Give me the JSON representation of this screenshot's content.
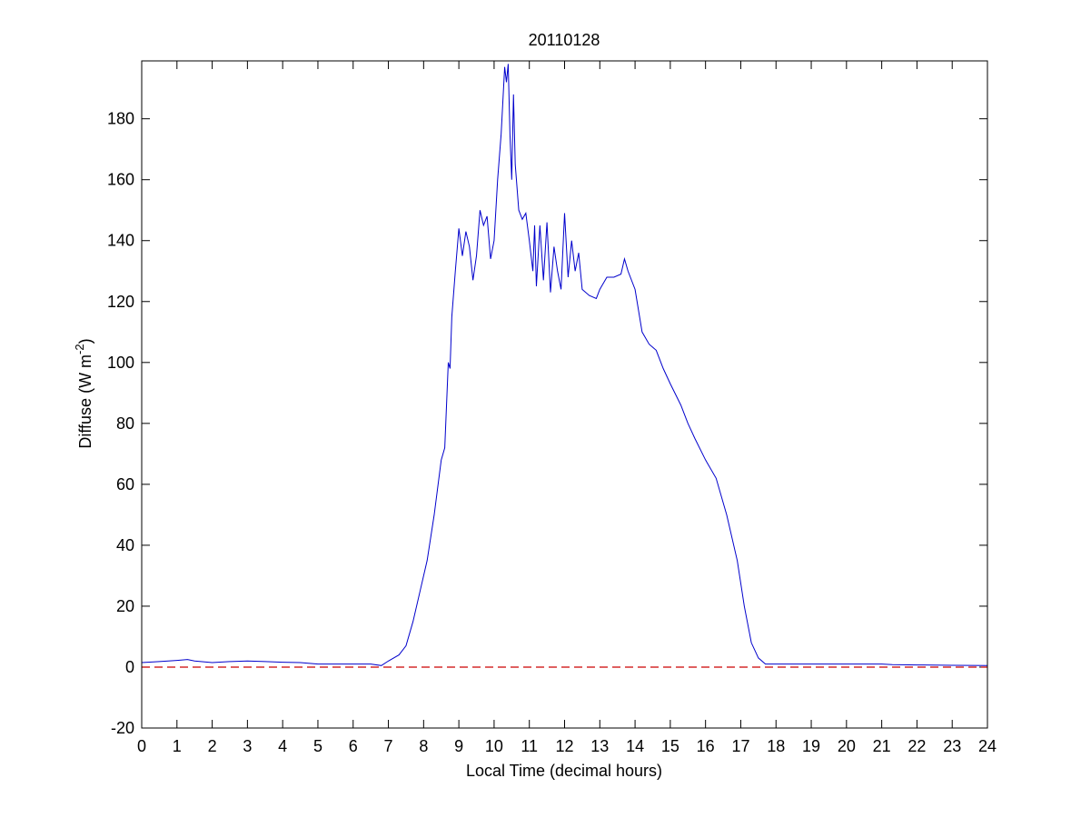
{
  "chart_data": {
    "type": "line",
    "title": "20110128",
    "xlabel": "Local Time (decimal hours)",
    "ylabel": {
      "text": "Diffuse (W m",
      "superscript": "-2",
      "suffix": ")"
    },
    "xlim": [
      0,
      24
    ],
    "ylim": [
      -20,
      199
    ],
    "xticks": [
      0,
      1,
      2,
      3,
      4,
      5,
      6,
      7,
      8,
      9,
      10,
      11,
      12,
      13,
      14,
      15,
      16,
      17,
      18,
      19,
      20,
      21,
      22,
      23,
      24
    ],
    "yticks": [
      -20,
      0,
      20,
      40,
      60,
      80,
      100,
      120,
      140,
      160,
      180
    ],
    "hlines": [
      {
        "value": 0,
        "color": "#cc0000",
        "style": "dashed"
      }
    ],
    "series": [
      {
        "color": "#0000cc",
        "x": [
          0,
          0.5,
          1,
          1.3,
          1.5,
          2,
          2.5,
          3,
          3.5,
          4,
          4.5,
          5,
          5.5,
          6,
          6.5,
          6.8,
          7,
          7.3,
          7.5,
          7.7,
          7.9,
          8.1,
          8.3,
          8.5,
          8.6,
          8.7,
          8.75,
          8.8,
          8.9,
          9,
          9.1,
          9.2,
          9.3,
          9.4,
          9.5,
          9.6,
          9.7,
          9.8,
          9.9,
          10,
          10.1,
          10.2,
          10.3,
          10.35,
          10.4,
          10.45,
          10.5,
          10.55,
          10.6,
          10.7,
          10.8,
          10.9,
          11,
          11.1,
          11.15,
          11.2,
          11.3,
          11.4,
          11.5,
          11.6,
          11.7,
          11.8,
          11.9,
          12,
          12.1,
          12.2,
          12.3,
          12.4,
          12.5,
          12.7,
          12.9,
          13,
          13.2,
          13.4,
          13.6,
          13.7,
          13.8,
          14,
          14.2,
          14.4,
          14.6,
          14.8,
          15,
          15.3,
          15.5,
          15.7,
          16,
          16.3,
          16.6,
          16.9,
          17.1,
          17.3,
          17.5,
          17.7,
          18,
          19,
          20,
          21,
          21.3,
          22,
          23,
          24
        ],
        "values": [
          1.5,
          1.8,
          2.2,
          2.5,
          2,
          1.5,
          1.8,
          2,
          1.8,
          1.6,
          1.5,
          1,
          1,
          1,
          1,
          0.5,
          2,
          4,
          7,
          15,
          25,
          35,
          50,
          68,
          72,
          100,
          98,
          115,
          130,
          144,
          135,
          143,
          138,
          127,
          135,
          150,
          145,
          148,
          134,
          140,
          160,
          175,
          197,
          192,
          198,
          175,
          160,
          188,
          165,
          150,
          147,
          149,
          140,
          130,
          145,
          125,
          145,
          127,
          146,
          123,
          138,
          130,
          124,
          149,
          128,
          140,
          130,
          136,
          124,
          122,
          121,
          124,
          128,
          128,
          129,
          134,
          130,
          124,
          110,
          106,
          104,
          98,
          93,
          86,
          80,
          75,
          68,
          62,
          50,
          35,
          20,
          8,
          3,
          1,
          1,
          1,
          1,
          1,
          0.8,
          0.7,
          0.6,
          0.5
        ]
      }
    ]
  }
}
